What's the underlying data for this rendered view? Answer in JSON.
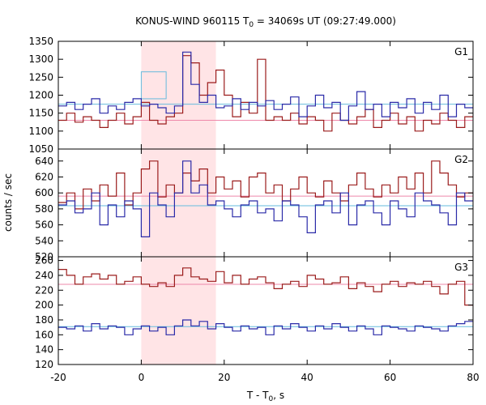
{
  "chart_data": {
    "type": "line",
    "title": "KONUS-WIND 960115 T",
    "title_sub": "0",
    "title_rest": " = 34069s UT (09:27:49.000)",
    "xlabel": "T - T",
    "xlabel_sub": "0",
    "xlabel_rest": ", s",
    "ylabel": "counts / sec",
    "xlim": [
      -20,
      80
    ],
    "xticks": [
      -20,
      0,
      20,
      40,
      60,
      80
    ],
    "xtick_labels": [
      "-20",
      "0",
      "20",
      "40",
      "60",
      "80"
    ],
    "bin_width": 2,
    "x_start": -20,
    "highlight_interval": [
      0,
      18
    ],
    "colors": {
      "red_series": "#9b1c1c",
      "blue_series": "#2a2aa8",
      "red_level": "#ee88aa",
      "blue_level": "#66bbdd",
      "highlight": "#ffe4e6"
    },
    "panels": [
      {
        "label": "G1",
        "ylim": [
          1050,
          1350
        ],
        "yticks": [
          1050,
          1100,
          1150,
          1200,
          1250,
          1300,
          1350
        ],
        "ytick_labels": [
          "1050",
          "1100",
          "1150",
          "1200",
          "1250",
          "1300",
          "1350"
        ],
        "red_level": 1130,
        "blue_level": 1175,
        "blue_box": {
          "x": [
            0,
            6
          ],
          "y": [
            1190,
            1265
          ]
        },
        "red_values": [
          1130,
          1150,
          1125,
          1140,
          1130,
          1110,
          1130,
          1150,
          1120,
          1140,
          1180,
          1130,
          1120,
          1140,
          1150,
          1310,
          1290,
          1200,
          1235,
          1270,
          1200,
          1140,
          1180,
          1150,
          1300,
          1130,
          1140,
          1130,
          1150,
          1120,
          1140,
          1130,
          1100,
          1150,
          1130,
          1120,
          1140,
          1160,
          1110,
          1130,
          1150,
          1120,
          1140,
          1100,
          1130,
          1120,
          1150,
          1130,
          1110,
          1140
        ],
        "blue_values": [
          1170,
          1180,
          1160,
          1175,
          1190,
          1150,
          1170,
          1160,
          1180,
          1190,
          1170,
          1175,
          1165,
          1150,
          1170,
          1320,
          1230,
          1180,
          1200,
          1165,
          1170,
          1190,
          1160,
          1180,
          1170,
          1185,
          1160,
          1175,
          1195,
          1140,
          1170,
          1200,
          1165,
          1180,
          1130,
          1170,
          1210,
          1160,
          1175,
          1140,
          1180,
          1165,
          1190,
          1150,
          1180,
          1160,
          1200,
          1140,
          1175,
          1165
        ]
      },
      {
        "label": "G2",
        "ylim": [
          520,
          655
        ],
        "yticks": [
          520,
          540,
          560,
          580,
          600,
          620,
          640
        ],
        "ytick_labels": [
          "520",
          "540",
          "560",
          "580",
          "600",
          "620",
          "640"
        ],
        "red_level": 596,
        "blue_level": 584,
        "red_values": [
          588,
          600,
          580,
          605,
          590,
          610,
          596,
          625,
          585,
          600,
          630,
          640,
          595,
          610,
          600,
          625,
          615,
          630,
          600,
          620,
          605,
          615,
          595,
          620,
          625,
          600,
          610,
          590,
          605,
          620,
          600,
          595,
          615,
          600,
          590,
          610,
          625,
          605,
          595,
          610,
          600,
          620,
          605,
          625,
          600,
          640,
          625,
          610,
          595,
          600
        ],
        "blue_values": [
          585,
          590,
          575,
          580,
          600,
          560,
          585,
          570,
          590,
          580,
          545,
          600,
          585,
          570,
          600,
          640,
          600,
          610,
          585,
          590,
          580,
          570,
          585,
          590,
          575,
          580,
          565,
          590,
          585,
          570,
          550,
          585,
          590,
          575,
          600,
          560,
          585,
          590,
          575,
          560,
          590,
          580,
          570,
          600,
          590,
          585,
          575,
          560,
          600,
          590
        ]
      },
      {
        "label": "G3",
        "ylim": [
          120,
          265
        ],
        "yticks": [
          120,
          140,
          160,
          180,
          200,
          220,
          240,
          260
        ],
        "ytick_labels": [
          "120",
          "140",
          "160",
          "180",
          "200",
          "220",
          "240",
          "260"
        ],
        "red_level": 228,
        "blue_level": 171,
        "red_values": [
          248,
          240,
          228,
          238,
          242,
          235,
          240,
          228,
          232,
          238,
          228,
          225,
          230,
          225,
          240,
          250,
          238,
          235,
          232,
          245,
          230,
          240,
          228,
          235,
          238,
          230,
          222,
          228,
          232,
          225,
          240,
          235,
          228,
          230,
          238,
          222,
          230,
          225,
          218,
          228,
          232,
          225,
          230,
          228,
          232,
          225,
          215,
          228,
          232,
          200
        ],
        "blue_values": [
          170,
          168,
          172,
          165,
          175,
          168,
          172,
          170,
          160,
          168,
          172,
          165,
          170,
          160,
          172,
          180,
          172,
          178,
          168,
          175,
          170,
          165,
          172,
          168,
          170,
          160,
          172,
          168,
          175,
          170,
          165,
          172,
          168,
          175,
          170,
          165,
          172,
          168,
          160,
          172,
          170,
          168,
          165,
          172,
          170,
          168,
          165,
          172,
          175,
          178
        ]
      }
    ]
  }
}
